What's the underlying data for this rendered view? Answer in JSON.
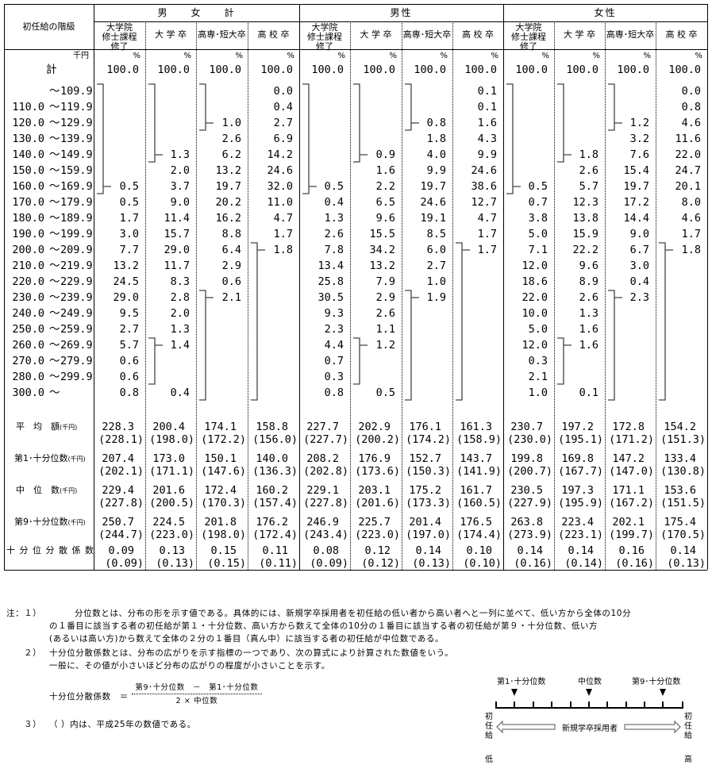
{
  "header": {
    "row_label": "初任給の階級",
    "groups": [
      "男　　女　　計",
      "男性",
      "女性"
    ],
    "subcolumns": [
      "大学院\n修士課程\n修了",
      "大 学 卒",
      "高専･短大卒",
      "高 校 卒"
    ],
    "unit_yen": "千円",
    "unit_pct": "%"
  },
  "total_row": {
    "label": "計",
    "value": "100.0"
  },
  "ranges": [
    "～ 109.9",
    "110.0 ～ 119.9",
    "120.0 ～ 129.9",
    "130.0 ～ 139.9",
    "140.0 ～ 149.9",
    "150.0 ～ 159.9",
    "160.0 ～ 169.9",
    "170.0 ～ 179.9",
    "180.0 ～ 189.9",
    "190.0 ～ 199.9",
    "200.0 ～ 209.9",
    "210.0 ～ 219.9",
    "220.0 ～ 229.9",
    "230.0 ～ 239.9",
    "240.0 ～ 249.9",
    "250.0 ～ 259.9",
    "260.0 ～ 269.9",
    "270.0 ～ 279.9",
    "280.0 ～ 299.9",
    "300.0 ～"
  ],
  "columns": [
    {
      "group": "男女計",
      "name": "大学院修士課程修了",
      "values": [
        null,
        null,
        null,
        null,
        null,
        null,
        "0.5",
        "0.5",
        "1.7",
        "3.0",
        "7.7",
        "13.2",
        "24.5",
        "29.0",
        "9.5",
        "2.7",
        "5.7",
        "0.6",
        "0.6",
        "0.8"
      ],
      "brackets": [
        {
          "from": 0,
          "to": 6,
          "value_at": 6
        }
      ]
    },
    {
      "group": "男女計",
      "name": "大学卒",
      "values": [
        null,
        null,
        null,
        null,
        "1.3",
        "2.0",
        "3.7",
        "9.0",
        "11.4",
        "15.7",
        "29.0",
        "11.7",
        "8.3",
        "2.8",
        "2.0",
        "1.3",
        "1.4",
        null,
        null,
        "0.4"
      ],
      "brackets": [
        {
          "from": 0,
          "to": 4,
          "value_at": 4
        },
        {
          "from": 16,
          "to": 18,
          "value_at": 16
        }
      ]
    },
    {
      "group": "男女計",
      "name": "高専・短大卒",
      "values": [
        null,
        null,
        "1.0",
        "2.6",
        "6.2",
        "13.2",
        "19.7",
        "20.2",
        "16.2",
        "8.8",
        "6.4",
        "2.9",
        "0.6",
        "2.1",
        null,
        null,
        null,
        null,
        null,
        null
      ],
      "brackets": [
        {
          "from": 0,
          "to": 2,
          "value_at": 2
        },
        {
          "from": 13,
          "to": 19,
          "value_at": 13
        }
      ]
    },
    {
      "group": "男女計",
      "name": "高校卒",
      "values": [
        "0.0",
        "0.4",
        "2.7",
        "6.9",
        "14.2",
        "24.6",
        "32.0",
        "11.0",
        "4.7",
        "1.7",
        "1.8",
        null,
        null,
        null,
        null,
        null,
        null,
        null,
        null,
        null
      ],
      "brackets": [
        {
          "from": 10,
          "to": 19,
          "value_at": 10
        }
      ]
    },
    {
      "group": "男性",
      "name": "大学院修士課程修了",
      "values": [
        null,
        null,
        null,
        null,
        null,
        null,
        "0.5",
        "0.4",
        "1.3",
        "2.6",
        "7.8",
        "13.4",
        "25.8",
        "30.5",
        "9.3",
        "2.3",
        "4.4",
        "0.7",
        "0.3",
        "0.8"
      ],
      "brackets": [
        {
          "from": 0,
          "to": 6,
          "value_at": 6
        }
      ]
    },
    {
      "group": "男性",
      "name": "大学卒",
      "values": [
        null,
        null,
        null,
        null,
        "0.9",
        "1.6",
        "2.2",
        "6.5",
        "9.6",
        "15.5",
        "34.2",
        "13.2",
        "7.9",
        "2.9",
        "2.6",
        "1.1",
        "1.2",
        null,
        null,
        "0.5"
      ],
      "brackets": [
        {
          "from": 0,
          "to": 4,
          "value_at": 4
        },
        {
          "from": 16,
          "to": 18,
          "value_at": 16
        }
      ]
    },
    {
      "group": "男性",
      "name": "高専・短大卒",
      "values": [
        null,
        null,
        "0.8",
        "1.8",
        "4.0",
        "9.9",
        "19.7",
        "24.6",
        "19.1",
        "8.5",
        "6.0",
        "2.7",
        "1.0",
        "1.9",
        null,
        null,
        null,
        null,
        null,
        null
      ],
      "brackets": [
        {
          "from": 0,
          "to": 2,
          "value_at": 2
        },
        {
          "from": 13,
          "to": 19,
          "value_at": 13
        }
      ]
    },
    {
      "group": "男性",
      "name": "高校卒",
      "values": [
        "0.1",
        "0.1",
        "1.6",
        "4.3",
        "9.9",
        "24.6",
        "38.6",
        "12.7",
        "4.7",
        "1.7",
        "1.7",
        null,
        null,
        null,
        null,
        null,
        null,
        null,
        null,
        null
      ],
      "brackets": [
        {
          "from": 10,
          "to": 19,
          "value_at": 10
        }
      ]
    },
    {
      "group": "女性",
      "name": "大学院修士課程修了",
      "values": [
        null,
        null,
        null,
        null,
        null,
        null,
        "0.5",
        "0.7",
        "3.8",
        "5.0",
        "7.1",
        "12.0",
        "18.6",
        "22.0",
        "10.0",
        "5.0",
        "12.0",
        "0.3",
        "2.1",
        "1.0"
      ],
      "brackets": [
        {
          "from": 0,
          "to": 6,
          "value_at": 6
        }
      ]
    },
    {
      "group": "女性",
      "name": "大学卒",
      "values": [
        null,
        null,
        null,
        null,
        "1.8",
        "2.6",
        "5.7",
        "12.3",
        "13.8",
        "15.9",
        "22.2",
        "9.6",
        "8.9",
        "2.6",
        "1.3",
        "1.6",
        "1.6",
        null,
        null,
        "0.1"
      ],
      "brackets": [
        {
          "from": 0,
          "to": 4,
          "value_at": 4
        },
        {
          "from": 16,
          "to": 18,
          "value_at": 16
        }
      ]
    },
    {
      "group": "女性",
      "name": "高専・短大卒",
      "values": [
        null,
        null,
        "1.2",
        "3.2",
        "7.6",
        "15.4",
        "19.7",
        "17.2",
        "14.4",
        "9.0",
        "6.7",
        "3.0",
        "0.4",
        "2.3",
        null,
        null,
        null,
        null,
        null,
        null
      ],
      "brackets": [
        {
          "from": 0,
          "to": 2,
          "value_at": 2
        },
        {
          "from": 13,
          "to": 19,
          "value_at": 13
        }
      ]
    },
    {
      "group": "女性",
      "name": "高校卒",
      "values": [
        "0.0",
        "0.8",
        "4.6",
        "11.6",
        "22.0",
        "24.7",
        "20.1",
        "8.0",
        "4.6",
        "1.7",
        "1.8",
        null,
        null,
        null,
        null,
        null,
        null,
        null,
        null,
        null
      ],
      "brackets": [
        {
          "from": 10,
          "to": 19,
          "value_at": 10
        }
      ]
    }
  ],
  "stats": [
    {
      "label": "平　均　額",
      "unit": "(千円)",
      "values": [
        [
          "228.3",
          "(228.1)"
        ],
        [
          "200.4",
          "(198.0)"
        ],
        [
          "174.1",
          "(172.2)"
        ],
        [
          "158.8",
          "(156.0)"
        ],
        [
          "227.7",
          "(227.7)"
        ],
        [
          "202.9",
          "(200.2)"
        ],
        [
          "176.1",
          "(174.2)"
        ],
        [
          "161.3",
          "(158.9)"
        ],
        [
          "230.7",
          "(230.0)"
        ],
        [
          "197.2",
          "(195.1)"
        ],
        [
          "172.8",
          "(171.2)"
        ],
        [
          "154.2",
          "(151.3)"
        ]
      ]
    },
    {
      "label": "第1･十分位数",
      "unit": "(千円)",
      "values": [
        [
          "207.4",
          "(202.1)"
        ],
        [
          "173.0",
          "(171.1)"
        ],
        [
          "150.1",
          "(147.6)"
        ],
        [
          "140.0",
          "(136.3)"
        ],
        [
          "208.2",
          "(202.8)"
        ],
        [
          "176.9",
          "(173.6)"
        ],
        [
          "152.7",
          "(150.3)"
        ],
        [
          "143.7",
          "(141.9)"
        ],
        [
          "199.8",
          "(200.7)"
        ],
        [
          "169.8",
          "(167.7)"
        ],
        [
          "147.2",
          "(147.0)"
        ],
        [
          "133.4",
          "(130.8)"
        ]
      ]
    },
    {
      "label": "中　位　数",
      "unit": "(千円)",
      "values": [
        [
          "229.4",
          "(227.8)"
        ],
        [
          "201.6",
          "(200.5)"
        ],
        [
          "172.4",
          "(170.3)"
        ],
        [
          "160.2",
          "(157.4)"
        ],
        [
          "229.1",
          "(227.8)"
        ],
        [
          "203.1",
          "(201.6)"
        ],
        [
          "175.2",
          "(173.3)"
        ],
        [
          "161.7",
          "(160.5)"
        ],
        [
          "230.5",
          "(227.9)"
        ],
        [
          "197.3",
          "(195.9)"
        ],
        [
          "171.1",
          "(167.2)"
        ],
        [
          "153.6",
          "(151.5)"
        ]
      ]
    },
    {
      "label": "第9･十分位数",
      "unit": "(千円)",
      "values": [
        [
          "250.7",
          "(244.7)"
        ],
        [
          "224.5",
          "(223.0)"
        ],
        [
          "201.8",
          "(198.0)"
        ],
        [
          "176.2",
          "(172.4)"
        ],
        [
          "246.9",
          "(243.4)"
        ],
        [
          "225.7",
          "(223.0)"
        ],
        [
          "201.4",
          "(197.0)"
        ],
        [
          "176.5",
          "(174.4)"
        ],
        [
          "263.8",
          "(273.9)"
        ],
        [
          "223.4",
          "(223.1)"
        ],
        [
          "202.1",
          "(199.7)"
        ],
        [
          "175.4",
          "(170.5)"
        ]
      ]
    },
    {
      "label": "十 分 位 分 散 係 数",
      "unit": "",
      "values": [
        [
          "0.09",
          "(0.09)"
        ],
        [
          "0.13",
          "(0.13)"
        ],
        [
          "0.15",
          "(0.15)"
        ],
        [
          "0.11",
          "(0.11)"
        ],
        [
          "0.08",
          "(0.09)"
        ],
        [
          "0.12",
          "(0.12)"
        ],
        [
          "0.14",
          "(0.13)"
        ],
        [
          "0.10",
          "(0.10)"
        ],
        [
          "0.14",
          "(0.16)"
        ],
        [
          "0.14",
          "(0.14)"
        ],
        [
          "0.16",
          "(0.16)"
        ],
        [
          "0.14",
          "(0.13)"
        ]
      ]
    }
  ],
  "notes": {
    "n1_mark": "注：１）",
    "n1_lines": [
      "分位数とは、分布の形を示す値である。具体的には、新規学卒採用者を初任給の低い者から高い者へと一列に並べて、低い方から全体の10分",
      "の１番目に該当する者の初任給が第１・十分位数、高い方から数えて全体の10分の１番目に該当する者の初任給が第９・十分位数、低い方",
      "(あるいは高い方)から数えて全体の２分の１番目（真ん中）に該当する者の初任給が中位数である。"
    ],
    "n2_mark": "２）",
    "n2_lines": [
      "十分位分散係数とは、分布の広がりを示す指標の一つであり、次の算式により計算された数値をいう。",
      "一般に、その値が小さいほど分布の広がりの程度が小さいことを示す。"
    ],
    "formula_lhs": "十分位分散係数　＝",
    "formula_num": "第9･十分位数　－　第1･十分位数",
    "formula_den": "2 × 中位数",
    "n3_mark": "３）",
    "n3_text": "（ ）内は、平成25年の数値である。"
  },
  "diagram": {
    "label_d1": "第1･十分位数",
    "label_median": "中位数",
    "label_d9": "第9･十分位数",
    "arrow_label": "新規学卒採用者",
    "left_axis": "初\n任\n給",
    "left_end": "低",
    "right_axis": "初\n任\n給",
    "right_end": "高"
  }
}
